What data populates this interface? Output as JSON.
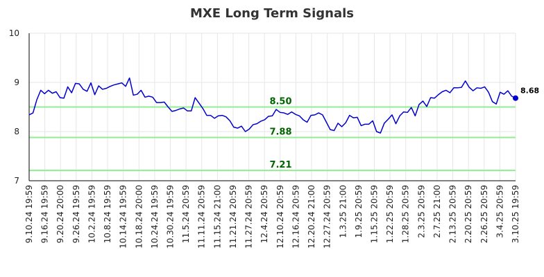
{
  "chart_data": {
    "type": "line",
    "title": "MXE Long Term Signals",
    "xlabel": "",
    "ylabel": "",
    "ylim": [
      7,
      10
    ],
    "y_ticks": [
      "7",
      "8",
      "9",
      "10"
    ],
    "x_tick_labels": [
      "9.10.24 19:59",
      "9.16.24 19:59",
      "9.20.24 20:00",
      "9.26.24 19:59",
      "10.2.24 19:59",
      "10.8.24 19:59",
      "10.14.24 19:59",
      "10.18.24 20:00",
      "10.24.24 19:59",
      "10.30.24 19:59",
      "11.5.24 20:59",
      "11.11.24 20:59",
      "11.15.24 21:00",
      "11.21.24 20:59",
      "11.27.24 20:59",
      "12.4.24 20:59",
      "12.10.24 20:59",
      "12.16.24 20:59",
      "12.20.24 21:00",
      "12.27.24 20:59",
      "1.3.25 21:00",
      "1.9.25 20:59",
      "1.15.25 20:59",
      "1.22.25 20:59",
      "1.28.25 20:59",
      "2.3.25 20:59",
      "2.7.25 21:00",
      "2.13.25 20:59",
      "2.20.25 20:59",
      "2.26.25 20:59",
      "3.4.25 20:59",
      "3.10.25 19:59"
    ],
    "grid": true,
    "line_color": "#0000cc",
    "level_color": "#90ee90",
    "level_label_color": "#006400",
    "levels": [
      {
        "value": 8.5,
        "label": "8.50"
      },
      {
        "value": 7.88,
        "label": "7.88"
      },
      {
        "value": 7.21,
        "label": "7.21"
      }
    ],
    "last_value_label": "8.68",
    "series": [
      {
        "values": [
          8.34,
          8.38,
          8.65,
          8.84,
          8.77,
          8.84,
          8.78,
          8.81,
          8.69,
          8.68,
          8.91,
          8.79,
          8.98,
          8.97,
          8.86,
          8.82,
          8.99,
          8.75,
          8.93,
          8.86,
          8.88,
          8.92,
          8.95,
          8.97,
          8.99,
          8.92,
          9.09,
          8.74,
          8.76,
          8.84,
          8.7,
          8.72,
          8.7,
          8.59,
          8.59,
          8.6,
          8.5,
          8.41,
          8.43,
          8.46,
          8.48,
          8.42,
          8.42,
          8.69,
          8.58,
          8.47,
          8.33,
          8.33,
          8.27,
          8.32,
          8.33,
          8.3,
          8.22,
          8.09,
          8.07,
          8.11,
          8.0,
          8.05,
          8.14,
          8.16,
          8.21,
          8.24,
          8.31,
          8.32,
          8.45,
          8.39,
          8.38,
          8.35,
          8.4,
          8.35,
          8.32,
          8.24,
          8.19,
          8.33,
          8.34,
          8.38,
          8.34,
          8.19,
          8.04,
          8.02,
          8.17,
          8.1,
          8.18,
          8.33,
          8.28,
          8.29,
          8.12,
          8.15,
          8.15,
          8.22,
          8.0,
          7.97,
          8.17,
          8.25,
          8.34,
          8.16,
          8.32,
          8.4,
          8.39,
          8.49,
          8.32,
          8.55,
          8.62,
          8.51,
          8.69,
          8.68,
          8.75,
          8.81,
          8.84,
          8.79,
          8.89,
          8.89,
          8.9,
          9.03,
          8.9,
          8.83,
          8.89,
          8.88,
          8.91,
          8.8,
          8.61,
          8.56,
          8.8,
          8.76,
          8.83,
          8.72,
          8.68
        ]
      }
    ]
  }
}
